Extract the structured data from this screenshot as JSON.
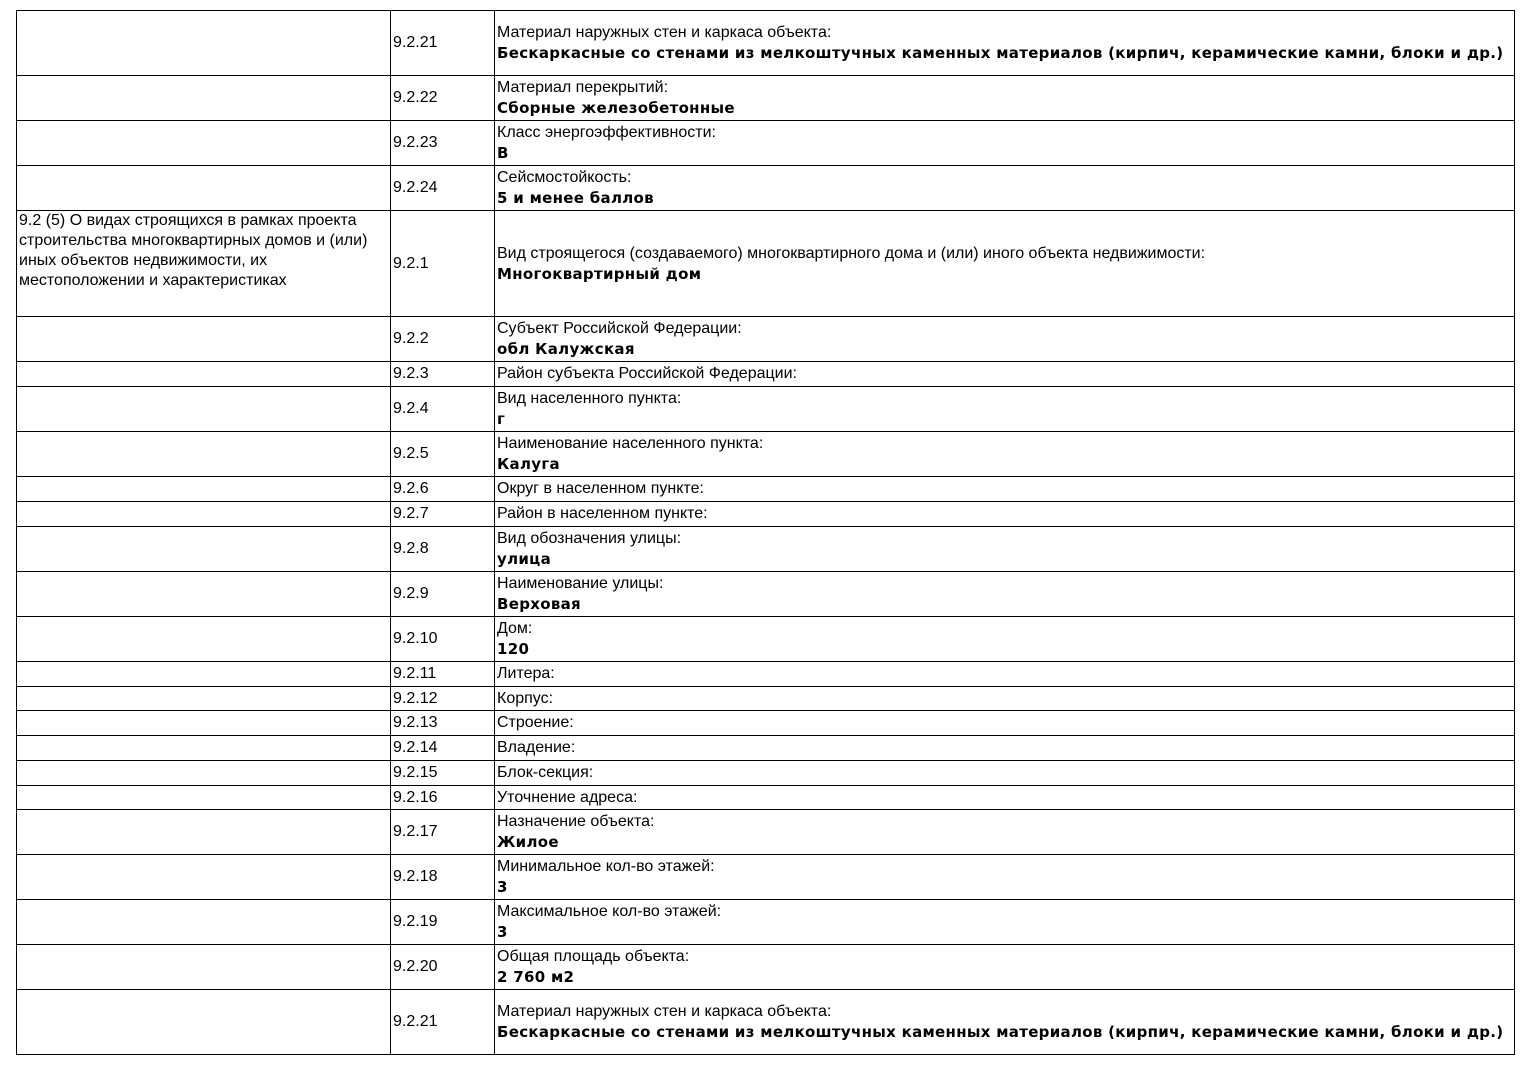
{
  "rows": [
    {
      "num": "9.2.21",
      "label": "Материал наружных стен и каркаса объекта:",
      "value": "Бескаркасные со стенами из мелкоштучных каменных материалов (кирпич, керамические камни, блоки и др.)",
      "h": 65
    },
    {
      "num": "9.2.22",
      "label": "Материал перекрытий:",
      "value": "Сборные железобетонные",
      "h": 45
    },
    {
      "num": "9.2.23",
      "label": "Класс энергоэффективности:",
      "value": "В",
      "h": 45
    },
    {
      "num": "9.2.24",
      "label": "Сейсмостойкость:",
      "value": "5 и менее баллов",
      "h": 45
    },
    {
      "section": "9.2 (5) О видах строящихся в рамках проекта строительства многоквартирных домов и (или) иных объектов недвижимости, их местоположении и характеристиках",
      "num": "9.2.1",
      "label": "Вид строящегося (создаваемого) многоквартирного дома и (или) иного объекта недвижимости:",
      "value": "Многоквартирный дом",
      "h": 106
    },
    {
      "num": "9.2.2",
      "label": "Субъект Российской Федерации:",
      "value": "обл Калужская",
      "h": 45
    },
    {
      "num": "9.2.3",
      "label": "Район субъекта Российской Федерации:",
      "value": "",
      "h": 25
    },
    {
      "num": "9.2.4",
      "label": "Вид населенного пункта:",
      "value": "г",
      "h": 45
    },
    {
      "num": "9.2.5",
      "label": "Наименование населенного пункта:",
      "value": "Калуга",
      "h": 45
    },
    {
      "num": "9.2.6",
      "label": "Округ в населенном пункте:",
      "value": "",
      "h": 25
    },
    {
      "num": "9.2.7",
      "label": "Район в населенном пункте:",
      "value": "",
      "h": 25
    },
    {
      "num": "9.2.8",
      "label": "Вид обозначения улицы:",
      "value": "улица",
      "h": 45
    },
    {
      "num": "9.2.9",
      "label": "Наименование улицы:",
      "value": "Верховая",
      "h": 45
    },
    {
      "num": "9.2.10",
      "label": "Дом:",
      "value": "120",
      "h": 45
    },
    {
      "num": "9.2.11",
      "label": "Литера:",
      "value": "",
      "h": 25
    },
    {
      "num": "9.2.12",
      "label": "Корпус:",
      "value": "",
      "h": 24
    },
    {
      "num": "9.2.13",
      "label": "Строение:",
      "value": "",
      "h": 25
    },
    {
      "num": "9.2.14",
      "label": "Владение:",
      "value": "",
      "h": 25
    },
    {
      "num": "9.2.15",
      "label": "Блок-секция:",
      "value": "",
      "h": 25
    },
    {
      "num": "9.2.16",
      "label": "Уточнение адреса:",
      "value": "",
      "h": 24
    },
    {
      "num": "9.2.17",
      "label": "Назначение объекта:",
      "value": "Жилое",
      "h": 45
    },
    {
      "num": "9.2.18",
      "label": "Минимальное кол-во этажей:",
      "value": "3",
      "h": 45
    },
    {
      "num": "9.2.19",
      "label": "Максимальное кол-во этажей:",
      "value": "3",
      "h": 45
    },
    {
      "num": "9.2.20",
      "label": "Общая площадь объекта:",
      "value": "2 760 м2",
      "h": 45
    },
    {
      "num": "9.2.21",
      "label": "Материал наружных стен и каркаса объекта:",
      "value": "Бескаркасные со стенами из мелкоштучных каменных материалов (кирпич, керамические камни, блоки и др.)",
      "h": 65
    }
  ]
}
